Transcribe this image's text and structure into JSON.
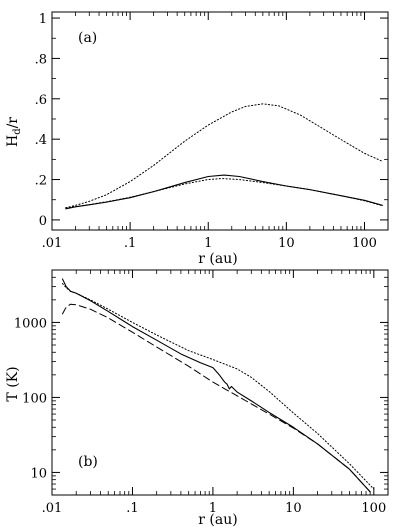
{
  "chart_data": [
    {
      "type": "line",
      "panel_label": "(a)",
      "xlabel": "r (au)",
      "ylabel_main": "H",
      "ylabel_sub": "d",
      "ylabel_tail": "/r",
      "xscale": "log",
      "yscale": "linear",
      "xlim": [
        0.01,
        200
      ],
      "ylim": [
        -0.05,
        1.03
      ],
      "x_ticks": [
        {
          "value": 0.01,
          "label": ".01"
        },
        {
          "value": 0.1,
          "label": ".1"
        },
        {
          "value": 1,
          "label": "1"
        },
        {
          "value": 10,
          "label": "10"
        },
        {
          "value": 100,
          "label": "100"
        }
      ],
      "y_ticks": [
        {
          "value": 0,
          "label": "0"
        },
        {
          "value": 0.2,
          "label": ".2"
        },
        {
          "value": 0.4,
          "label": ".4"
        },
        {
          "value": 0.6,
          "label": ".6"
        },
        {
          "value": 0.8,
          "label": ".8"
        },
        {
          "value": 1.0,
          "label": "1"
        }
      ],
      "grid": false,
      "series": [
        {
          "style": "solid",
          "x": [
            0.015,
            0.02,
            0.03,
            0.05,
            0.1,
            0.2,
            0.5,
            1.0,
            1.6,
            2.5,
            5,
            10,
            20,
            50,
            100,
            170
          ],
          "y": [
            0.055,
            0.065,
            0.075,
            0.088,
            0.11,
            0.14,
            0.185,
            0.215,
            0.222,
            0.215,
            0.19,
            0.168,
            0.15,
            0.12,
            0.097,
            0.072
          ]
        },
        {
          "style": "dotted-high",
          "x": [
            0.015,
            0.02,
            0.03,
            0.05,
            0.1,
            0.2,
            0.5,
            1.0,
            2.0,
            3.0,
            5.0,
            8.0,
            15,
            30,
            60,
            100,
            170
          ],
          "y": [
            0.06,
            0.072,
            0.092,
            0.125,
            0.19,
            0.27,
            0.39,
            0.47,
            0.535,
            0.562,
            0.575,
            0.565,
            0.52,
            0.45,
            0.38,
            0.33,
            0.29
          ]
        },
        {
          "style": "dotted-low",
          "x": [
            0.015,
            0.02,
            0.03,
            0.05,
            0.1,
            0.2,
            0.5,
            1.0,
            1.5,
            2.5,
            5,
            10,
            20,
            50,
            100,
            170
          ],
          "y": [
            0.06,
            0.066,
            0.076,
            0.09,
            0.112,
            0.14,
            0.178,
            0.2,
            0.205,
            0.2,
            0.185,
            0.168,
            0.15,
            0.12,
            0.095,
            0.07
          ]
        }
      ]
    },
    {
      "type": "line",
      "panel_label": "(b)",
      "xlabel": "r (au)",
      "ylabel": "T (K)",
      "xscale": "log",
      "yscale": "log",
      "xlim": [
        0.01,
        150
      ],
      "ylim": [
        5,
        5000
      ],
      "x_ticks": [
        {
          "value": 0.01,
          "label": ".01"
        },
        {
          "value": 0.1,
          "label": ".1"
        },
        {
          "value": 1,
          "label": "1"
        },
        {
          "value": 10,
          "label": "10"
        },
        {
          "value": 100,
          "label": "100"
        }
      ],
      "y_ticks": [
        {
          "value": 10,
          "label": "10"
        },
        {
          "value": 100,
          "label": "100"
        },
        {
          "value": 1000,
          "label": "1000"
        }
      ],
      "grid": false,
      "series": [
        {
          "style": "solid",
          "x": [
            0.0135,
            0.015,
            0.017,
            0.02,
            0.03,
            0.05,
            0.1,
            0.2,
            0.4,
            0.7,
            1.0,
            1.2,
            1.4,
            1.5,
            1.6,
            1.7,
            2.0,
            3.0,
            5,
            10,
            20,
            50,
            90
          ],
          "y": [
            3800,
            3000,
            2600,
            2450,
            1950,
            1400,
            880,
            580,
            380,
            290,
            250,
            200,
            160,
            150,
            130,
            140,
            118,
            90,
            63,
            40,
            24,
            11,
            5.5
          ]
        },
        {
          "style": "dotted",
          "x": [
            0.0135,
            0.015,
            0.017,
            0.02,
            0.03,
            0.05,
            0.1,
            0.2,
            0.5,
            1.0,
            2.0,
            3.0,
            5,
            10,
            20,
            50,
            100
          ],
          "y": [
            3300,
            2900,
            2600,
            2450,
            2000,
            1500,
            1000,
            680,
            420,
            320,
            240,
            185,
            120,
            62,
            33,
            13,
            6
          ]
        },
        {
          "style": "dashed",
          "x": [
            0.0135,
            0.015,
            0.017,
            0.02,
            0.03,
            0.05,
            0.1,
            0.2,
            0.5,
            1.0,
            1.5,
            2.0,
            3.0,
            5,
            10,
            20,
            50,
            90
          ],
          "y": [
            1300,
            1600,
            1750,
            1720,
            1500,
            1150,
            740,
            470,
            260,
            160,
            125,
            105,
            82,
            60,
            39,
            24,
            11,
            5.5
          ]
        }
      ]
    }
  ]
}
